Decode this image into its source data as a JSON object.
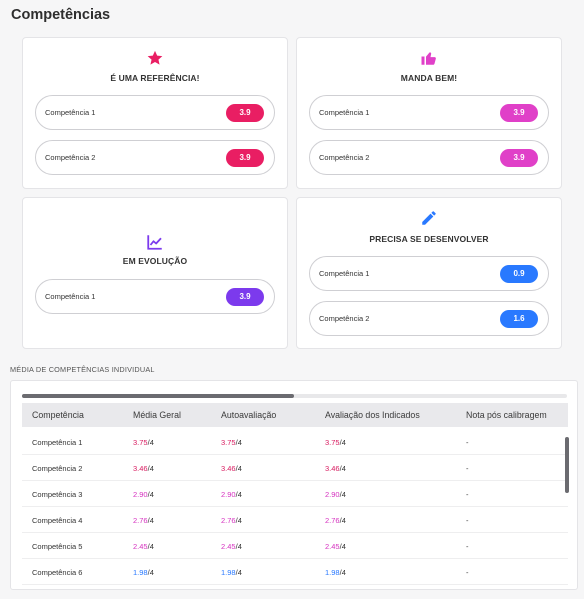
{
  "page": {
    "title": "Competências"
  },
  "cards": [
    {
      "key": "referencia",
      "title": "É UMA REFERÊNCIA!",
      "icon": "star-icon",
      "color": "#e91e63",
      "items": [
        {
          "name": "Competência 1",
          "score": "3.9"
        },
        {
          "name": "Competência 2",
          "score": "3.9"
        }
      ]
    },
    {
      "key": "manda-bem",
      "title": "MANDA BEM!",
      "icon": "thumbs-up-icon",
      "color": "#e040c8",
      "items": [
        {
          "name": "Competência 1",
          "score": "3.9"
        },
        {
          "name": "Competência 2",
          "score": "3.9"
        }
      ]
    },
    {
      "key": "evolucao",
      "title": "EM EVOLUÇÃO",
      "icon": "trending-chart-icon",
      "color": "#7c3aed",
      "items": [
        {
          "name": "Competência 1",
          "score": "3.9"
        }
      ]
    },
    {
      "key": "desenvolver",
      "title": "PRECISA SE DESENVOLVER",
      "icon": "pencil-icon",
      "color": "#2979ff",
      "items": [
        {
          "name": "Competência 1",
          "score": "0.9"
        },
        {
          "name": "Competência 2",
          "score": "1.6"
        }
      ]
    }
  ],
  "table_section": {
    "label": "MÉDIA DE COMPETÊNCIAS INDIVIDUAL",
    "columns": [
      "Competência",
      "Média Geral",
      "Autoavaliação",
      "Avaliação dos Indicados",
      "Nota pós calibragem"
    ],
    "rows": [
      {
        "name": "Competência 1",
        "media": "3.75",
        "auto": "3.75",
        "indicados": "3.75",
        "max": "/4",
        "calib": "-",
        "color": "#d81b60"
      },
      {
        "name": "Competência 2",
        "media": "3.46",
        "auto": "3.46",
        "indicados": "3.46",
        "max": "/4",
        "calib": "-",
        "color": "#d81b60"
      },
      {
        "name": "Competência 3",
        "media": "2.90",
        "auto": "2.90",
        "indicados": "2.90",
        "max": "/4",
        "calib": "-",
        "color": "#d633c0"
      },
      {
        "name": "Competência 4",
        "media": "2.76",
        "auto": "2.76",
        "indicados": "2.76",
        "max": "/4",
        "calib": "-",
        "color": "#d633c0"
      },
      {
        "name": "Competência 5",
        "media": "2.45",
        "auto": "2.45",
        "indicados": "2.45",
        "max": "/4",
        "calib": "-",
        "color": "#d633c0"
      },
      {
        "name": "Competência 6",
        "media": "1.98",
        "auto": "1.98",
        "indicados": "1.98",
        "max": "/4",
        "calib": "-",
        "color": "#2979ff"
      }
    ]
  }
}
